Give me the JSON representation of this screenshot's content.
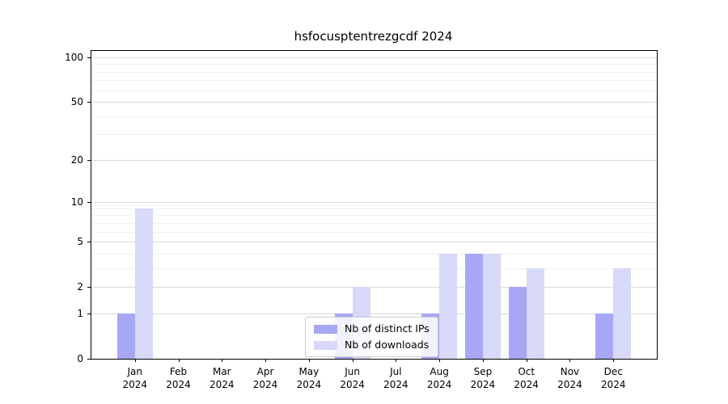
{
  "chart_data": {
    "type": "bar",
    "title": "hsfocusptentrezgcdf 2024",
    "categories": [
      "Jan",
      "Feb",
      "Mar",
      "Apr",
      "May",
      "Jun",
      "Jul",
      "Aug",
      "Sep",
      "Oct",
      "Nov",
      "Dec"
    ],
    "year": "2024",
    "series": [
      {
        "name": "Nb of distinct IPs",
        "color": "#a7a7f5",
        "values": [
          1,
          0,
          0,
          0,
          0,
          1,
          0,
          1,
          4,
          2,
          0,
          1
        ]
      },
      {
        "name": "Nb of downloads",
        "color": "#d8d8f8",
        "values": [
          9,
          0,
          0,
          0,
          0,
          2,
          0,
          4,
          4,
          3,
          0,
          3
        ]
      }
    ],
    "y_ticks": [
      0,
      1,
      2,
      5,
      10,
      20,
      50,
      100
    ],
    "y_minor_ticks": [
      3,
      4,
      6,
      7,
      8,
      9,
      30,
      40,
      60,
      70,
      80,
      90
    ],
    "scale": "log1p",
    "ylim": [
      0,
      100
    ],
    "xlabel": "",
    "ylabel": "",
    "grid": true,
    "legend_position": "lower center",
    "colors": {
      "axis": "#000000",
      "grid_major": "#d9d9d9",
      "grid_minor": "#f0f0f0",
      "background": "#ffffff"
    }
  }
}
